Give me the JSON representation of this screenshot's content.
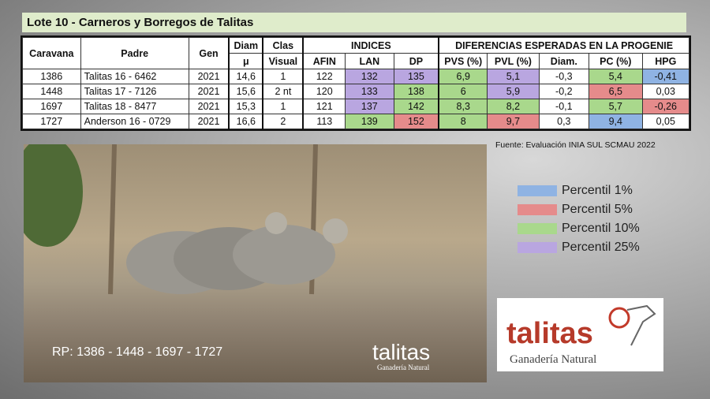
{
  "header": {
    "title": "Lote 10 - Carneros y Borregos de Talitas"
  },
  "table": {
    "header_top": [
      "Caravana",
      "Padre",
      "Gen",
      "Diam",
      "Clas",
      "INDICES",
      "DIFERENCIAS ESPERADAS EN LA PROGENIE"
    ],
    "header_bottom": [
      "μ",
      "Visual",
      "AFIN",
      "LAN",
      "DP",
      "PVS (%)",
      "PVL (%)",
      "Diam.",
      "PC (%)",
      "HPG"
    ],
    "rows": [
      [
        "1386",
        "Talitas 16 - 6462",
        "2021",
        "14,6",
        "1",
        "122",
        "132",
        "135",
        "6,9",
        "5,1",
        "-0,3",
        "5,4",
        "-0,41"
      ],
      [
        "1448",
        "Talitas 17 - 7126",
        "2021",
        "15,6",
        "2 nt",
        "120",
        "133",
        "138",
        "6",
        "5,9",
        "-0,2",
        "6,5",
        "0,03"
      ],
      [
        "1697",
        "Talitas 18 - 8477",
        "2021",
        "15,3",
        "1",
        "121",
        "137",
        "142",
        "8,3",
        "8,2",
        "-0,1",
        "5,7",
        "-0,26"
      ],
      [
        "1727",
        "Anderson 16 - 0729",
        "2021",
        "16,6",
        "2",
        "113",
        "139",
        "152",
        "8",
        "9,7",
        "0,3",
        "9,4",
        "0,05"
      ]
    ],
    "cell_colors": [
      [
        null,
        null,
        null,
        null,
        null,
        null,
        "#b9a6e0",
        "#b9a6e0",
        "#a9d88c",
        "#b9a6e0",
        null,
        "#a9d88c",
        "#8fb3e3"
      ],
      [
        null,
        null,
        null,
        null,
        null,
        null,
        "#b9a6e0",
        "#a9d88c",
        "#a9d88c",
        "#b9a6e0",
        null,
        "#e58b8b",
        null
      ],
      [
        null,
        null,
        null,
        null,
        null,
        null,
        "#b9a6e0",
        "#a9d88c",
        "#a9d88c",
        "#a9d88c",
        null,
        "#a9d88c",
        "#e58b8b"
      ],
      [
        null,
        null,
        null,
        null,
        null,
        null,
        "#a9d88c",
        "#e58b8b",
        "#a9d88c",
        "#e58b8b",
        null,
        "#8fb3e3",
        null
      ]
    ]
  },
  "source": "Fuente: Evaluación INIA SUL SCMAU 2022",
  "legend": [
    {
      "label": "Percentil 1%",
      "color": "#8fb3e3"
    },
    {
      "label": "Percentil 5%",
      "color": "#e58b8b"
    },
    {
      "label": "Percentil 10%",
      "color": "#a9d88c"
    },
    {
      "label": "Percentil 25%",
      "color": "#b9a6e0"
    }
  ],
  "photo": {
    "caption": "RP: 1386 - 1448 - 1697 - 1727",
    "brand": "talitas",
    "tagline": "Ganadería Natural"
  },
  "logo": {
    "brand": "talitas",
    "tagline": "Ganadería Natural"
  }
}
